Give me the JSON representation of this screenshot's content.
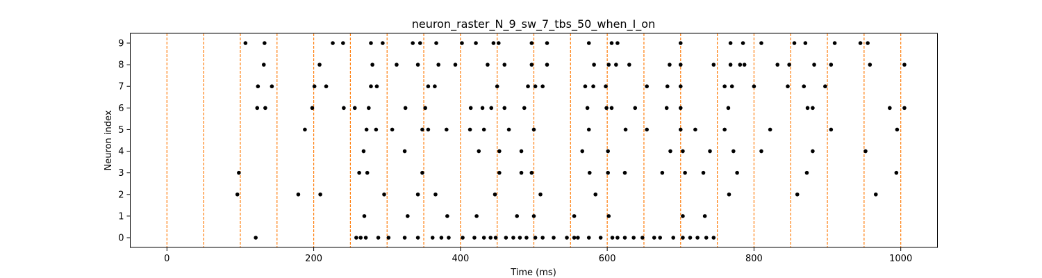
{
  "chart_data": {
    "type": "scatter",
    "title": "neuron_raster_N_9_sw_7_tbs_50_when_I_on",
    "xlabel": "Time (ms)",
    "ylabel": "Neuron index",
    "xlim": [
      -50,
      1050
    ],
    "ylim": [
      -0.45,
      9.45
    ],
    "xticks": [
      0,
      200,
      400,
      600,
      800,
      1000
    ],
    "yticks": [
      0,
      1,
      2,
      3,
      4,
      5,
      6,
      7,
      8,
      9
    ],
    "grid": false,
    "legend": "none",
    "marker_color": "#000000",
    "vline_color": "#ff7f0e",
    "vlines": [
      0,
      50,
      100,
      150,
      200,
      250,
      300,
      350,
      400,
      450,
      500,
      550,
      600,
      650,
      700,
      750,
      800,
      850,
      900,
      950,
      1000
    ],
    "series": [
      {
        "y": 9,
        "x": [
          107,
          133,
          226,
          240,
          278,
          294,
          335,
          345,
          367,
          402,
          421,
          445,
          452,
          497,
          518,
          575,
          606,
          614,
          700,
          768,
          785,
          810,
          855,
          870,
          910,
          945,
          955
        ]
      },
      {
        "y": 8,
        "x": [
          132,
          208,
          280,
          313,
          342,
          370,
          393,
          437,
          460,
          497,
          518,
          582,
          602,
          612,
          630,
          685,
          700,
          745,
          768,
          781,
          787,
          832,
          848,
          882,
          905,
          958,
          1005
        ]
      },
      {
        "y": 7,
        "x": [
          124,
          143,
          201,
          217,
          278,
          286,
          356,
          365,
          450,
          492,
          502,
          512,
          570,
          581,
          598,
          654,
          682,
          700,
          760,
          770,
          800,
          846,
          868,
          897
        ]
      },
      {
        "y": 6,
        "x": [
          123,
          134,
          198,
          241,
          256,
          275,
          325,
          352,
          414,
          430,
          442,
          460,
          487,
          573,
          599,
          606,
          638,
          681,
          700,
          765,
          873,
          880,
          985,
          1005
        ]
      },
      {
        "y": 5,
        "x": [
          188,
          272,
          285,
          307,
          348,
          356,
          381,
          413,
          432,
          466,
          500,
          575,
          625,
          654,
          700,
          720,
          760,
          822,
          905,
          995
        ]
      },
      {
        "y": 4,
        "x": [
          268,
          324,
          425,
          453,
          483,
          566,
          601,
          686,
          703,
          740,
          772,
          810,
          880,
          952
        ]
      },
      {
        "y": 3,
        "x": [
          98,
          262,
          273,
          348,
          453,
          483,
          497,
          576,
          601,
          624,
          675,
          706,
          731,
          777,
          872,
          994
        ]
      },
      {
        "y": 2,
        "x": [
          96,
          179,
          209,
          296,
          342,
          366,
          447,
          509,
          584,
          766,
          859,
          966
        ]
      },
      {
        "y": 1,
        "x": [
          269,
          328,
          382,
          422,
          477,
          500,
          555,
          602,
          703,
          733
        ]
      },
      {
        "y": 0,
        "x": [
          121,
          258,
          264,
          271,
          288,
          302,
          324,
          342,
          362,
          374,
          384,
          403,
          419,
          432,
          441,
          448,
          462,
          472,
          481,
          490,
          502,
          512,
          527,
          545,
          555,
          560,
          575,
          591,
          607,
          614,
          624,
          636,
          648,
          664,
          672,
          690,
          703,
          713,
          723,
          735,
          745
        ]
      }
    ]
  }
}
